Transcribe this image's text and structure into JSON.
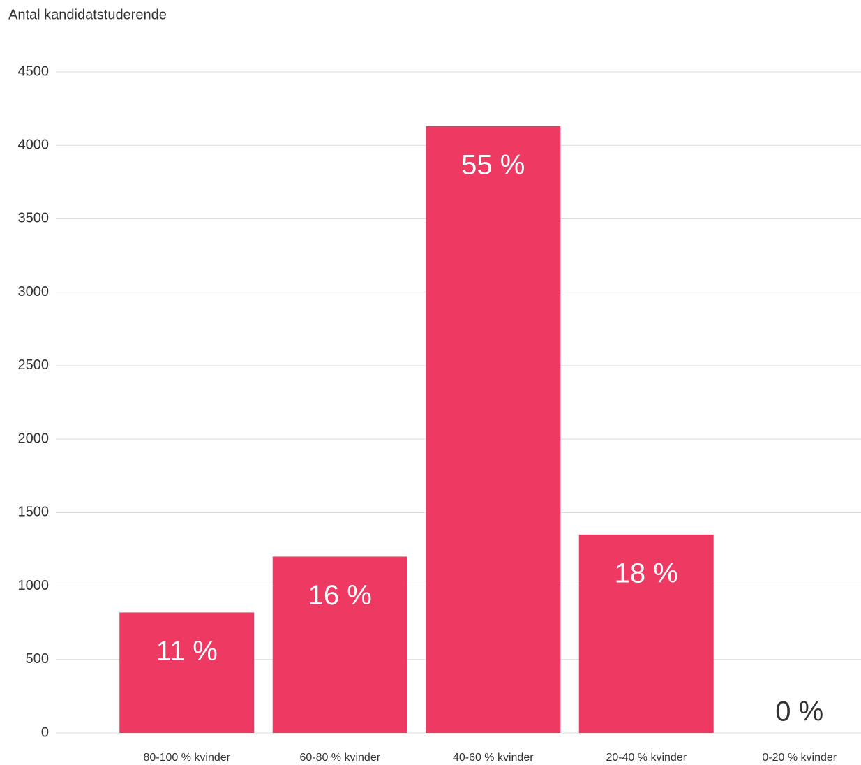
{
  "chart_data": {
    "type": "bar",
    "y_axis_label": "Antal kandidatstuderende",
    "categories": [
      "80-100 % kvinder",
      "60-80 % kvinder",
      "40-60 % kvinder",
      "20-40 % kvinder",
      "0-20 % kvinder"
    ],
    "values": [
      820,
      1200,
      4130,
      1350,
      0
    ],
    "share_labels": [
      "11 %",
      "16 %",
      "55 %",
      "18 %",
      "0 %"
    ],
    "color": "#ee3a63",
    "ylim": [
      0,
      4500
    ],
    "yticks": [
      0,
      500,
      1000,
      1500,
      2000,
      2500,
      3000,
      3500,
      4000,
      4500
    ],
    "grid": true
  }
}
